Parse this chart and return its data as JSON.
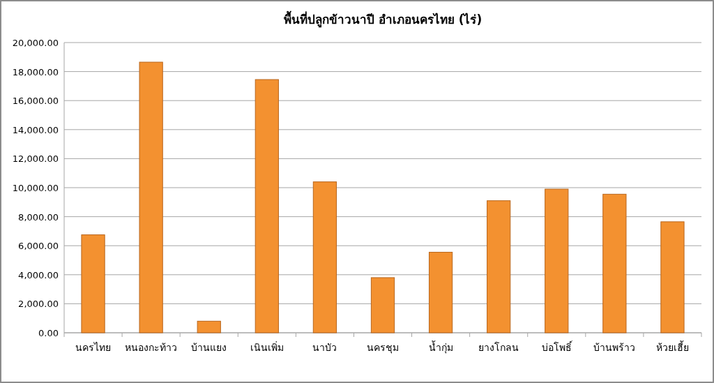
{
  "chart_data": {
    "type": "bar",
    "title": "พื้นที่ปลูกข้าวนาปี  อำเภอนครไทย (ไร่)",
    "categories": [
      "นครไทย",
      "หนองกะท้าว",
      "บ้านแยง",
      "เนินเพิ่ม",
      "นาบัว",
      "นครชุม",
      "น้ำกุ่ม",
      "ยางโกลน",
      "บ่อโพธิ์",
      "บ้านพร้าว",
      "ห้วยเฮี้ย"
    ],
    "values": [
      6750,
      18650,
      800,
      17450,
      10400,
      3800,
      5550,
      9100,
      9900,
      9550,
      7650
    ],
    "color": "#f39130",
    "ylim": [
      0,
      20000
    ],
    "yticks": [
      {
        "value": 0,
        "label": "0.00"
      },
      {
        "value": 2000,
        "label": "2,000.00"
      },
      {
        "value": 4000,
        "label": "4,000.00"
      },
      {
        "value": 6000,
        "label": "6,000.00"
      },
      {
        "value": 8000,
        "label": "8,000.00"
      },
      {
        "value": 10000,
        "label": "10,000.00"
      },
      {
        "value": 12000,
        "label": "12,000.00"
      },
      {
        "value": 14000,
        "label": "14,000.00"
      },
      {
        "value": 16000,
        "label": "16,000.00"
      },
      {
        "value": 18000,
        "label": "18,000.00"
      },
      {
        "value": 20000,
        "label": "20,000.00"
      }
    ],
    "grid": "y"
  }
}
